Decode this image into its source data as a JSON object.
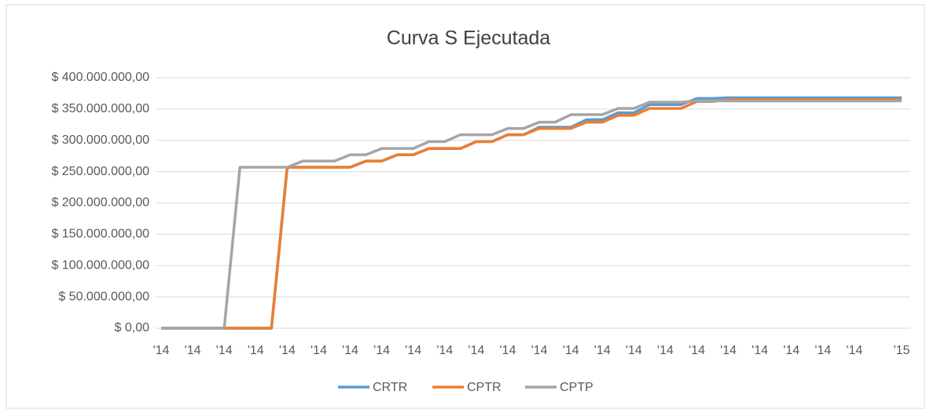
{
  "chart_data": {
    "type": "line",
    "title": "Curva S Ejecutada",
    "categories": [
      "'14",
      null,
      "'14",
      null,
      "'14",
      null,
      "'14",
      null,
      "'14",
      null,
      "'14",
      null,
      "'14",
      null,
      "'14",
      null,
      "'14",
      null,
      "'14",
      null,
      "'14",
      null,
      "'14",
      null,
      "'14",
      null,
      "'14",
      null,
      "'14",
      null,
      "'14",
      null,
      "'14",
      null,
      "'14",
      null,
      "'14",
      null,
      "'14",
      null,
      "'14",
      null,
      "'14",
      null,
      "'14",
      null,
      null,
      "'15"
    ],
    "series": [
      {
        "name": "CRTR",
        "color": "#5b9bd5",
        "values": [
          0,
          0,
          0,
          0,
          0,
          0,
          0,
          0,
          257000000,
          257000000,
          257000000,
          257000000,
          257000000,
          267000000,
          267000000,
          277000000,
          277000000,
          287000000,
          287000000,
          287000000,
          298000000,
          298000000,
          309000000,
          309000000,
          321000000,
          321000000,
          321000000,
          333000000,
          333000000,
          344000000,
          344000000,
          357000000,
          357000000,
          357000000,
          367000000,
          367000000,
          368000000,
          368000000,
          368000000,
          368000000,
          368000000,
          368000000,
          368000000,
          368000000,
          368000000,
          368000000,
          368000000,
          368000000
        ]
      },
      {
        "name": "CPTR",
        "color": "#ed7d31",
        "values": [
          0,
          0,
          0,
          0,
          0,
          0,
          0,
          0,
          257000000,
          257000000,
          257000000,
          257000000,
          257000000,
          267000000,
          267000000,
          277000000,
          277000000,
          287000000,
          287000000,
          287000000,
          298000000,
          298000000,
          309000000,
          309000000,
          319000000,
          319000000,
          319000000,
          329000000,
          329000000,
          340000000,
          340000000,
          351000000,
          351000000,
          351000000,
          362000000,
          362000000,
          365000000,
          365000000,
          365000000,
          365000000,
          365000000,
          365000000,
          365000000,
          365000000,
          365000000,
          365000000,
          365000000,
          365000000
        ]
      },
      {
        "name": "CPTP",
        "color": "#a5a5a5",
        "values": [
          0,
          0,
          0,
          0,
          0,
          257000000,
          257000000,
          257000000,
          257000000,
          267000000,
          267000000,
          267000000,
          277000000,
          277000000,
          287000000,
          287000000,
          287000000,
          298000000,
          298000000,
          309000000,
          309000000,
          309000000,
          319000000,
          319000000,
          329000000,
          329000000,
          341000000,
          341000000,
          341000000,
          351000000,
          351000000,
          361000000,
          361000000,
          361000000,
          363000000,
          363000000,
          363000000,
          363000000,
          363000000,
          363000000,
          363000000,
          363000000,
          363000000,
          363000000,
          363000000,
          363000000,
          363000000,
          363000000
        ]
      }
    ],
    "ylim": [
      0,
      400000000
    ],
    "yticks": [
      {
        "value": 0,
        "label": "$ 0,00"
      },
      {
        "value": 50000000,
        "label": "$ 50.000.000,00"
      },
      {
        "value": 100000000,
        "label": "$ 100.000.000,00"
      },
      {
        "value": 150000000,
        "label": "$ 150.000.000,00"
      },
      {
        "value": 200000000,
        "label": "$ 200.000.000,00"
      },
      {
        "value": 250000000,
        "label": "$ 250.000.000,00"
      },
      {
        "value": 300000000,
        "label": "$ 300.000.000,00"
      },
      {
        "value": 350000000,
        "label": "$ 350.000.000,00"
      },
      {
        "value": 400000000,
        "label": "$ 400.000.000,00"
      }
    ],
    "grid": true,
    "legend": "bottom"
  }
}
